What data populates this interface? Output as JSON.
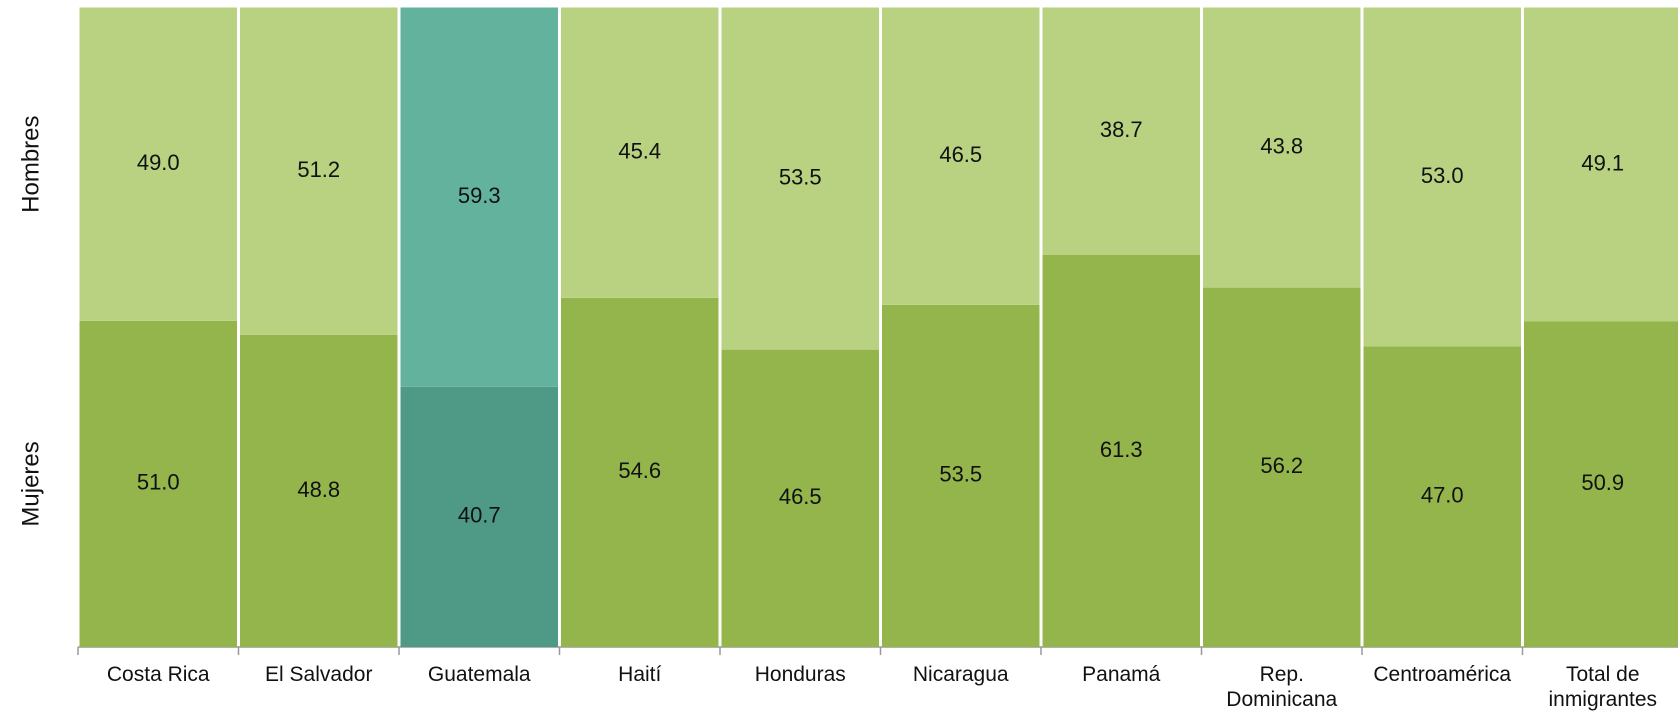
{
  "chart_data": {
    "type": "stacked-bar",
    "categories": [
      "Costa Rica",
      "El Salvador",
      "Guatemala",
      "Haití",
      "Honduras",
      "Nicaragua",
      "Panamá",
      "Rep. Dominicana",
      "Centroamérica",
      "Total de inmigrantes"
    ],
    "series": [
      {
        "name": "Mujeres",
        "color": "#93b54b",
        "colors": [
          "#93b54b",
          "#93b54b",
          "#4f9a87",
          "#93b54b",
          "#93b54b",
          "#93b54b",
          "#93b54b",
          "#93b54b",
          "#93b54b",
          "#93b54b"
        ],
        "values": [
          51.0,
          48.8,
          40.7,
          54.6,
          46.5,
          53.5,
          61.3,
          56.2,
          47.0,
          50.9
        ],
        "value_labels": [
          "51.0",
          "48.8",
          "40.7",
          "54.6",
          "46.5",
          "53.5",
          "61.3",
          "56.2",
          "47.0",
          "50.9"
        ]
      },
      {
        "name": "Hombres",
        "color": "#b8d282",
        "colors": [
          "#b8d282",
          "#b8d282",
          "#62b29e",
          "#b8d282",
          "#b8d282",
          "#b8d282",
          "#b8d282",
          "#b8d282",
          "#b8d282",
          "#b8d282"
        ],
        "values": [
          49.0,
          51.2,
          59.3,
          45.4,
          53.5,
          46.5,
          38.7,
          43.8,
          53.0,
          49.1
        ],
        "value_labels": [
          "49.0",
          "51.2",
          "59.3",
          "45.4",
          "53.5",
          "46.5",
          "38.7",
          "43.8",
          "53.0",
          "49.1"
        ]
      }
    ],
    "ylim": [
      0,
      100
    ]
  }
}
